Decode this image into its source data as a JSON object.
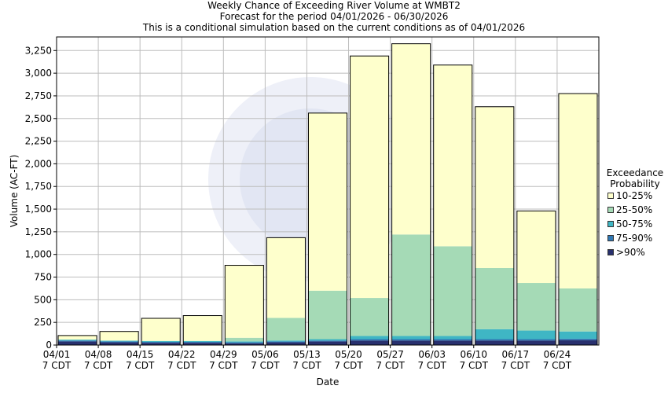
{
  "chart_data": {
    "type": "bar",
    "stacked": true,
    "title": [
      "Weekly Chance of Exceeding River Volume at WMBT2",
      "Forecast for the period 04/01/2026 - 06/30/2026",
      "This is a conditional simulation based on the current conditions as of 04/01/2026"
    ],
    "xlabel": "Date",
    "ylabel": "Volume (AC-FT)",
    "ylim": [
      0,
      3400
    ],
    "yticks": [
      "0",
      "250",
      "500",
      "750",
      "1,000",
      "1,250",
      "1,500",
      "1,750",
      "2,000",
      "2,250",
      "2,500",
      "2,750",
      "3,000",
      "3,250"
    ],
    "ytick_values": [
      0,
      250,
      500,
      750,
      1000,
      1250,
      1500,
      1750,
      2000,
      2250,
      2500,
      2750,
      3000,
      3250
    ],
    "categories": [
      [
        "04/01",
        "7 CDT"
      ],
      [
        "04/08",
        "7 CDT"
      ],
      [
        "04/15",
        "7 CDT"
      ],
      [
        "04/22",
        "7 CDT"
      ],
      [
        "04/29",
        "7 CDT"
      ],
      [
        "05/06",
        "7 CDT"
      ],
      [
        "05/13",
        "7 CDT"
      ],
      [
        "05/20",
        "7 CDT"
      ],
      [
        "05/27",
        "7 CDT"
      ],
      [
        "06/03",
        "7 CDT"
      ],
      [
        "06/10",
        "7 CDT"
      ],
      [
        "06/17",
        "7 CDT"
      ],
      [
        "06/24",
        "7 CDT"
      ]
    ],
    "grid": true,
    "legend": {
      "title": [
        "Exceedance",
        "Probability"
      ],
      "placement": "right",
      "entries": [
        "10-25%",
        "25-50%",
        "50-75%",
        "75-90%",
        ">90%"
      ]
    },
    "series": [
      {
        "name": ">90%",
        "color": "#28306e",
        "values": [
          40,
          30,
          25,
          25,
          20,
          30,
          40,
          50,
          50,
          50,
          50,
          50,
          55
        ]
      },
      {
        "name": "75-90%",
        "color": "#3179b5",
        "values": [
          10,
          10,
          10,
          10,
          10,
          10,
          10,
          15,
          15,
          15,
          15,
          15,
          15
        ]
      },
      {
        "name": "50-75%",
        "color": "#3fb6c4",
        "values": [
          10,
          8,
          10,
          10,
          10,
          10,
          15,
          35,
          35,
          35,
          110,
          95,
          80
        ]
      },
      {
        "name": "25-50%",
        "color": "#a5dab6",
        "values": [
          0,
          0,
          0,
          0,
          40,
          250,
          535,
          420,
          1120,
          990,
          675,
          525,
          475
        ]
      },
      {
        "name": "10-25%",
        "color": "#feffcc",
        "values": [
          45,
          102,
          250,
          280,
          800,
          885,
          1960,
          2670,
          2105,
          2000,
          1780,
          795,
          2150
        ]
      }
    ],
    "totals": [
      105,
      150,
      295,
      325,
      880,
      1185,
      2560,
      3190,
      3325,
      3090,
      2630,
      1480,
      2775
    ]
  }
}
